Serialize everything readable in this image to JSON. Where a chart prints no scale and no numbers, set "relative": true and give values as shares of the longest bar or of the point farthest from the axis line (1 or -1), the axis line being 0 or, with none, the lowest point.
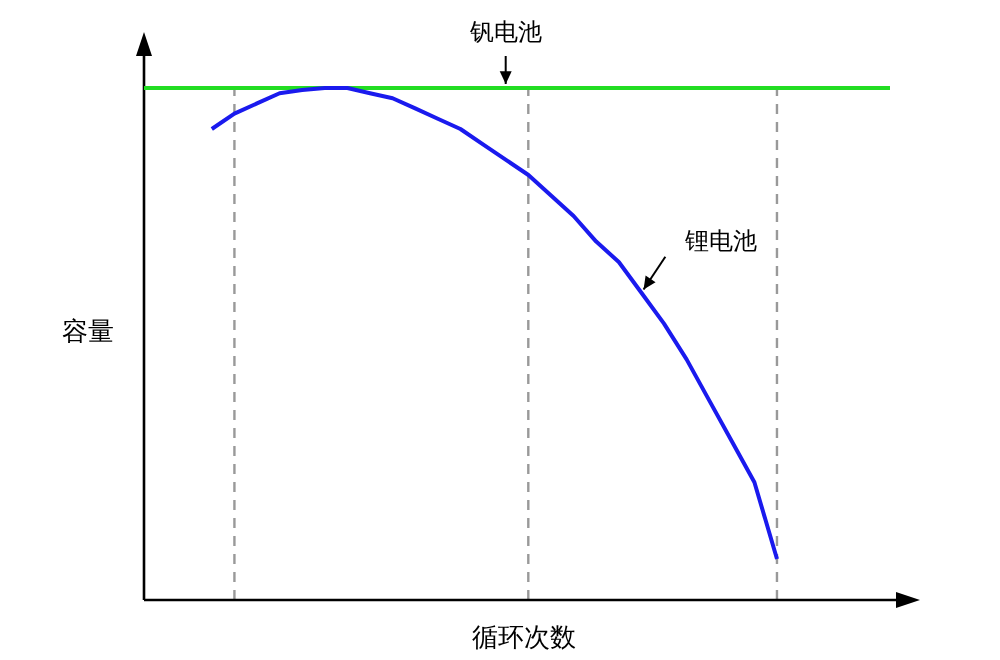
{
  "chart_data": {
    "type": "line",
    "xlabel": "循环次数",
    "ylabel": "容量",
    "relative": true,
    "legend": false,
    "grid": "x",
    "marker": "none",
    "categories": [
      null,
      null,
      null,
      null,
      null,
      null,
      null,
      null,
      null,
      null,
      null,
      null,
      null,
      null,
      null,
      null,
      null,
      null,
      null,
      null,
      null,
      null,
      null,
      null,
      null,
      null,
      null,
      null,
      null,
      null,
      null,
      null,
      null,
      null
    ],
    "series": [
      {
        "name": "钒电池",
        "color": "#22dd22",
        "values": [
          1,
          1,
          1,
          1,
          1,
          1,
          1,
          1,
          1,
          1,
          1,
          1,
          1,
          1,
          1,
          1,
          1,
          1,
          1,
          1,
          1,
          1,
          1,
          1,
          1,
          1,
          1,
          1,
          1,
          1,
          1,
          1,
          1,
          1
        ]
      },
      {
        "name": "锂电池",
        "color": "#1a1aee",
        "values": [
          null,
          null,
          null,
          0.92,
          0.95,
          0.97,
          0.99,
          0.996,
          1,
          1,
          0.99,
          0.98,
          0.96,
          0.94,
          0.92,
          0.89,
          0.86,
          0.83,
          0.79,
          0.75,
          0.7,
          0.66,
          0.6,
          0.54,
          0.47,
          0.39,
          0.31,
          0.23,
          0.08,
          null,
          null,
          null,
          null,
          null
        ]
      }
    ]
  }
}
